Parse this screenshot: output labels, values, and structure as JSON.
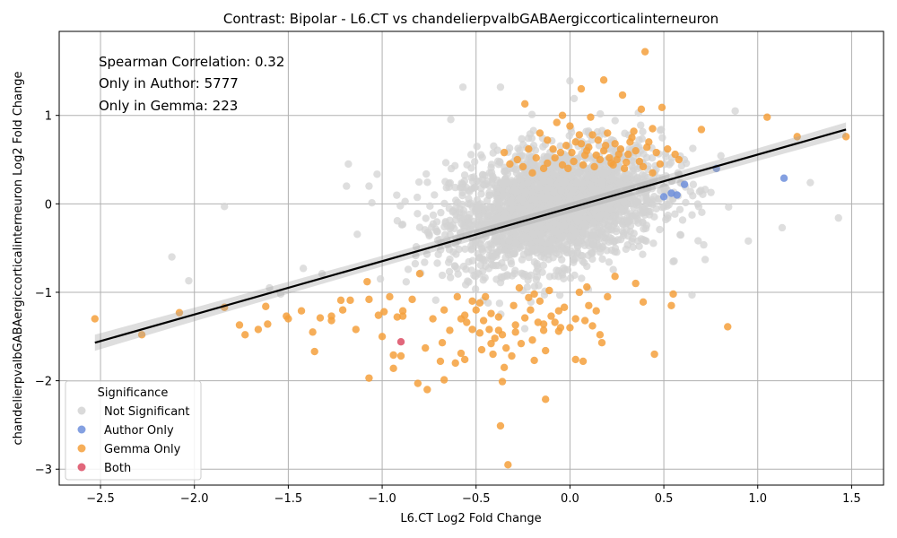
{
  "chart_data": {
    "type": "scatter",
    "title": "Contrast: Bipolar - L6.CT vs chandelierpvalbGABAergiccorticalinterneuron",
    "xlabel": "L6.CT Log2 Fold Change",
    "ylabel": "chandelierpvalbGABAergiccorticalinterneuron Log2 Fold Change",
    "xlim": [
      -2.72,
      1.67
    ],
    "ylim": [
      -3.18,
      1.95
    ],
    "x_ticks": [
      -2.5,
      -2.0,
      -1.5,
      -1.0,
      -0.5,
      0.0,
      0.5,
      1.0,
      1.5
    ],
    "x_tick_labels": [
      "−2.5",
      "−2.0",
      "−1.5",
      "−1.0",
      "−0.5",
      "0.0",
      "0.5",
      "1.0",
      "1.5"
    ],
    "y_ticks": [
      -3,
      -2,
      -1,
      0,
      1
    ],
    "y_tick_labels": [
      "−3",
      "−2",
      "−1",
      "0",
      "1"
    ],
    "grid": true,
    "annotations": [
      "Spearman Correlation: 0.32",
      "Only in Author: 5777",
      "Only in Gemma: 223"
    ],
    "regression": {
      "x0": -2.53,
      "y0": -1.57,
      "x1": 1.47,
      "y1": 0.84
    },
    "legend": {
      "title": "Significance",
      "placement": "lower-left",
      "entries": [
        {
          "label": "Not Significant",
          "color": "#d3d3d3"
        },
        {
          "label": "Author Only",
          "color": "#6e8fdc"
        },
        {
          "label": "Gemma Only",
          "color": "#f5a03c"
        },
        {
          "label": "Both",
          "color": "#dc4c64"
        }
      ]
    },
    "series": [
      {
        "name": "Gemma Only",
        "color": "#f5a03c",
        "points": [
          [
            -2.53,
            -1.3
          ],
          [
            -2.28,
            -1.48
          ],
          [
            -2.08,
            -1.23
          ],
          [
            -1.84,
            -1.17
          ],
          [
            -1.76,
            -1.37
          ],
          [
            -1.73,
            -1.48
          ],
          [
            -1.66,
            -1.42
          ],
          [
            -1.62,
            -1.16
          ],
          [
            -1.61,
            -1.36
          ],
          [
            -1.51,
            -1.27
          ],
          [
            -1.5,
            -1.3
          ],
          [
            -1.43,
            -1.21
          ],
          [
            -1.37,
            -1.45
          ],
          [
            -1.36,
            -1.67
          ],
          [
            -1.33,
            -1.29
          ],
          [
            -1.27,
            -1.27
          ],
          [
            -1.27,
            -1.32
          ],
          [
            -1.22,
            -1.09
          ],
          [
            -1.21,
            -1.2
          ],
          [
            -1.17,
            -1.09
          ],
          [
            -1.14,
            -1.42
          ],
          [
            -1.08,
            -0.88
          ],
          [
            -1.07,
            -1.97
          ],
          [
            -1.07,
            -1.08
          ],
          [
            -1.02,
            -1.26
          ],
          [
            -1.0,
            -1.5
          ],
          [
            -0.99,
            -1.22
          ],
          [
            -0.94,
            -1.71
          ],
          [
            -0.94,
            -1.86
          ],
          [
            -0.92,
            -1.28
          ],
          [
            -0.9,
            -1.72
          ],
          [
            -0.89,
            -1.21
          ],
          [
            -0.89,
            -1.27
          ],
          [
            -0.81,
            -2.03
          ],
          [
            -0.8,
            -0.79
          ],
          [
            -0.76,
            -2.1
          ],
          [
            -0.73,
            -1.3
          ],
          [
            -0.69,
            -1.78
          ],
          [
            -0.68,
            -1.57
          ],
          [
            -0.67,
            -1.99
          ],
          [
            -0.67,
            -1.2
          ],
          [
            -0.61,
            -1.8
          ],
          [
            -0.58,
            -1.69
          ],
          [
            -0.56,
            -1.76
          ],
          [
            -0.55,
            -1.34
          ],
          [
            -0.52,
            -1.1
          ],
          [
            -0.48,
            -1.46
          ],
          [
            -0.46,
            -1.32
          ],
          [
            -0.42,
            -1.58
          ],
          [
            -0.38,
            -1.43
          ],
          [
            -0.37,
            -2.51
          ],
          [
            -0.36,
            -2.01
          ],
          [
            -0.35,
            -1.85
          ],
          [
            -0.33,
            -2.95
          ],
          [
            -0.31,
            -1.72
          ],
          [
            -0.29,
            -1.37
          ],
          [
            -0.24,
            -1.29
          ],
          [
            -0.24,
            1.13
          ],
          [
            -0.22,
            -1.06
          ],
          [
            -0.19,
            -1.77
          ],
          [
            -0.14,
            -1.43
          ],
          [
            -0.13,
            -2.21
          ],
          [
            -0.13,
            -1.66
          ],
          [
            -0.08,
            -1.34
          ],
          [
            -0.06,
            -1.21
          ],
          [
            -0.04,
            0.44
          ],
          [
            0.03,
            -1.76
          ],
          [
            0.06,
            1.3
          ],
          [
            0.07,
            -1.78
          ],
          [
            0.08,
            -1.32
          ],
          [
            0.09,
            -0.94
          ],
          [
            0.11,
            0.98
          ],
          [
            0.16,
            -1.48
          ],
          [
            0.17,
            -1.57
          ],
          [
            0.18,
            1.4
          ],
          [
            0.22,
            0.46
          ],
          [
            0.26,
            0.56
          ],
          [
            0.28,
            1.23
          ],
          [
            0.3,
            0.47
          ],
          [
            0.33,
            0.75
          ],
          [
            0.35,
            -0.9
          ],
          [
            0.38,
            1.07
          ],
          [
            0.39,
            -1.11
          ],
          [
            0.4,
            1.72
          ],
          [
            0.44,
            0.85
          ],
          [
            0.45,
            -1.7
          ],
          [
            0.49,
            1.09
          ],
          [
            0.54,
            -1.15
          ],
          [
            0.55,
            -1.02
          ],
          [
            0.56,
            0.56
          ],
          [
            0.58,
            0.5
          ],
          [
            0.7,
            0.84
          ],
          [
            0.84,
            -1.39
          ],
          [
            1.05,
            0.98
          ],
          [
            1.21,
            0.76
          ],
          [
            1.47,
            0.76
          ],
          [
            -0.43,
            -1.42
          ],
          [
            -0.4,
            -1.52
          ],
          [
            -0.34,
            -1.63
          ],
          [
            -0.2,
            -1.54
          ],
          [
            -0.1,
            -1.27
          ],
          [
            -0.03,
            -1.17
          ],
          [
            0.0,
            -1.4
          ],
          [
            0.05,
            -1.0
          ],
          [
            0.12,
            -1.38
          ],
          [
            0.2,
            -1.05
          ],
          [
            -0.5,
            -1.2
          ],
          [
            -0.45,
            -1.05
          ],
          [
            -0.3,
            -1.15
          ],
          [
            -0.27,
            -0.95
          ],
          [
            -0.16,
            -1.1
          ],
          [
            -0.11,
            -0.98
          ],
          [
            -0.6,
            -1.05
          ],
          [
            -0.64,
            -1.43
          ],
          [
            -0.77,
            -1.63
          ],
          [
            -0.84,
            -1.08
          ],
          [
            -0.96,
            -1.05
          ],
          [
            -0.56,
            -1.26
          ],
          [
            -0.47,
            -1.65
          ],
          [
            -0.26,
            -1.58
          ],
          [
            -0.17,
            -1.34
          ],
          [
            -0.06,
            -1.44
          ],
          [
            0.14,
            -1.21
          ],
          [
            0.24,
            -0.82
          ],
          [
            -0.36,
            -1.48
          ],
          [
            -0.42,
            -1.24
          ],
          [
            -0.32,
            0.45
          ],
          [
            -0.28,
            0.5
          ],
          [
            -0.18,
            0.52
          ],
          [
            -0.14,
            0.4
          ],
          [
            -0.09,
            0.62
          ],
          [
            -0.05,
            0.58
          ],
          [
            -0.02,
            0.66
          ],
          [
            0.02,
            0.48
          ],
          [
            0.05,
            0.78
          ],
          [
            0.08,
            0.55
          ],
          [
            0.1,
            0.64
          ],
          [
            0.13,
            0.42
          ],
          [
            0.15,
            0.72
          ],
          [
            0.18,
            0.6
          ],
          [
            0.21,
            0.52
          ],
          [
            0.24,
            0.68
          ],
          [
            0.27,
            0.62
          ],
          [
            0.31,
            0.56
          ],
          [
            0.34,
            0.82
          ],
          [
            0.37,
            0.48
          ],
          [
            0.41,
            0.64
          ],
          [
            0.46,
            0.58
          ],
          [
            0.52,
            0.62
          ],
          [
            0.44,
            0.35
          ],
          [
            -0.22,
            0.62
          ],
          [
            -0.12,
            0.72
          ],
          [
            -0.07,
            0.92
          ],
          [
            0.0,
            0.88
          ],
          [
            0.03,
            0.7
          ],
          [
            0.07,
            0.44
          ],
          [
            0.12,
            0.78
          ],
          [
            0.16,
            0.5
          ],
          [
            0.19,
            0.66
          ],
          [
            0.23,
            0.44
          ],
          [
            0.29,
            0.4
          ],
          [
            0.32,
            0.7
          ],
          [
            -0.35,
            0.58
          ],
          [
            -0.25,
            0.42
          ],
          [
            -0.16,
            0.8
          ],
          [
            -0.04,
            1.0
          ],
          [
            0.09,
            0.6
          ],
          [
            0.2,
            0.8
          ],
          [
            0.35,
            0.6
          ],
          [
            0.48,
            0.45
          ],
          [
            0.39,
            0.42
          ],
          [
            -0.08,
            0.52
          ],
          [
            0.01,
            0.58
          ],
          [
            0.14,
            0.55
          ],
          [
            -0.2,
            0.35
          ],
          [
            -0.12,
            0.46
          ],
          [
            -0.01,
            0.4
          ],
          [
            0.06,
            0.68
          ],
          [
            0.25,
            0.5
          ],
          [
            0.42,
            0.7
          ],
          [
            -0.52,
            -1.42
          ],
          [
            -0.58,
            -1.3
          ],
          [
            -0.48,
            -1.12
          ],
          [
            -0.38,
            -1.28
          ],
          [
            -0.29,
            -1.45
          ],
          [
            -0.21,
            -1.2
          ],
          [
            -0.14,
            -1.36
          ],
          [
            -0.05,
            -1.4
          ],
          [
            0.03,
            -1.3
          ],
          [
            0.1,
            -1.15
          ],
          [
            -0.41,
            -1.7
          ],
          [
            -0.19,
            -1.02
          ]
        ]
      },
      {
        "name": "Author Only",
        "color": "#6e8fdc",
        "points": [
          [
            0.5,
            0.08
          ],
          [
            0.54,
            0.12
          ],
          [
            0.57,
            0.1
          ],
          [
            0.61,
            0.22
          ],
          [
            0.78,
            0.4
          ],
          [
            1.14,
            0.29
          ]
        ]
      },
      {
        "name": "Both",
        "color": "#dc4c64",
        "points": [
          [
            -0.9,
            -1.56
          ]
        ]
      }
    ]
  }
}
